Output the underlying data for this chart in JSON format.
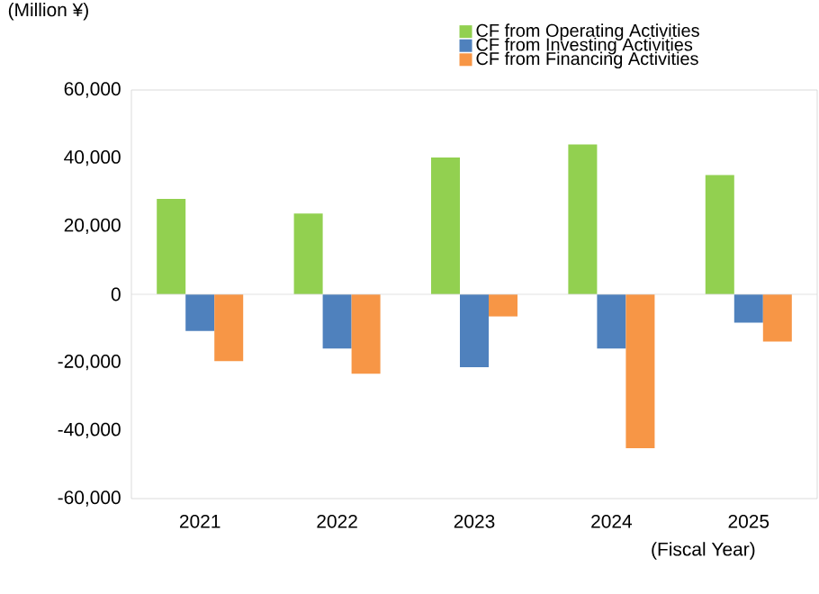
{
  "chart_data": {
    "type": "bar",
    "ylabel": "(Million ¥)",
    "xlabel": "(Fiscal Year)",
    "categories": [
      "2021",
      "2022",
      "2023",
      "2024",
      "2025"
    ],
    "series": [
      {
        "name": "CF from Operating Activities",
        "color": "#92d050",
        "values": [
          28000,
          23700,
          40200,
          44000,
          35000
        ]
      },
      {
        "name": "CF from Investing Activities",
        "color": "#4f81bd",
        "values": [
          -10800,
          -15900,
          -21400,
          -15900,
          -8300
        ]
      },
      {
        "name": "CF from Financing Activities",
        "color": "#f79646",
        "values": [
          -19600,
          -23300,
          -6500,
          -45200,
          -13900
        ]
      }
    ],
    "ylim": [
      -60000,
      60000
    ],
    "yticks": [
      {
        "value": -60000,
        "label": "-60,000"
      },
      {
        "value": -40000,
        "label": "-40,000"
      },
      {
        "value": -20000,
        "label": "-20,000"
      },
      {
        "value": 0,
        "label": "0"
      },
      {
        "value": 20000,
        "label": "20,000"
      },
      {
        "value": 40000,
        "label": "40,000"
      },
      {
        "value": 60000,
        "label": "60,000"
      }
    ],
    "ref_lines": [
      {
        "axis": "y",
        "value": 0,
        "color": "#d9d9d9"
      }
    ],
    "legend": "top right"
  }
}
